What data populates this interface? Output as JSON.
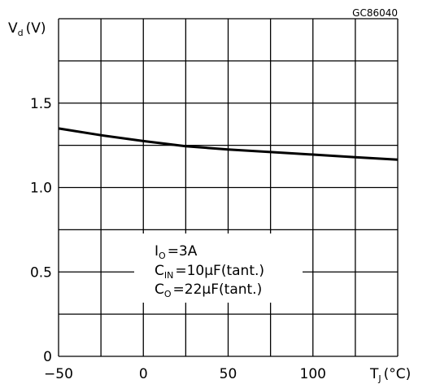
{
  "chart_data": {
    "type": "line",
    "figure_code": "GC86040",
    "ylabel": "V",
    "ylabel_subscript": "d",
    "ylabel_unit": "(V)",
    "xlabel": "T",
    "xlabel_subscript": "J",
    "xlabel_unit": "(°C)",
    "xlim": [
      -50,
      150
    ],
    "ylim": [
      0,
      2.0
    ],
    "x_grid": [
      -50,
      -25,
      0,
      25,
      50,
      75,
      100,
      125,
      150
    ],
    "y_grid": [
      0,
      0.25,
      0.5,
      0.75,
      1.0,
      1.25,
      1.5,
      1.75,
      2.0
    ],
    "x_ticks": [
      {
        "value": -50,
        "label": "−50"
      },
      {
        "value": 0,
        "label": "0"
      },
      {
        "value": 50,
        "label": "50"
      },
      {
        "value": 100,
        "label": "100"
      }
    ],
    "y_ticks": [
      {
        "value": 0,
        "label": "0"
      },
      {
        "value": 0.5,
        "label": "0.5"
      },
      {
        "value": 1.0,
        "label": "1.0"
      },
      {
        "value": 1.5,
        "label": "1.5"
      }
    ],
    "grid": true,
    "series": [
      {
        "x": [
          -50,
          -25,
          0,
          25,
          50,
          75,
          100,
          125,
          150
        ],
        "y": [
          1.35,
          1.31,
          1.275,
          1.245,
          1.225,
          1.21,
          1.195,
          1.18,
          1.165
        ]
      }
    ],
    "annotation": {
      "lines": [
        {
          "main": "I",
          "sub": "O",
          "rest": "=3A"
        },
        {
          "main": "C",
          "sub": "IN",
          "rest": "=10μF(tant.)"
        },
        {
          "main": "C",
          "sub": "O",
          "rest": "=22μF(tant.)"
        }
      ]
    }
  }
}
